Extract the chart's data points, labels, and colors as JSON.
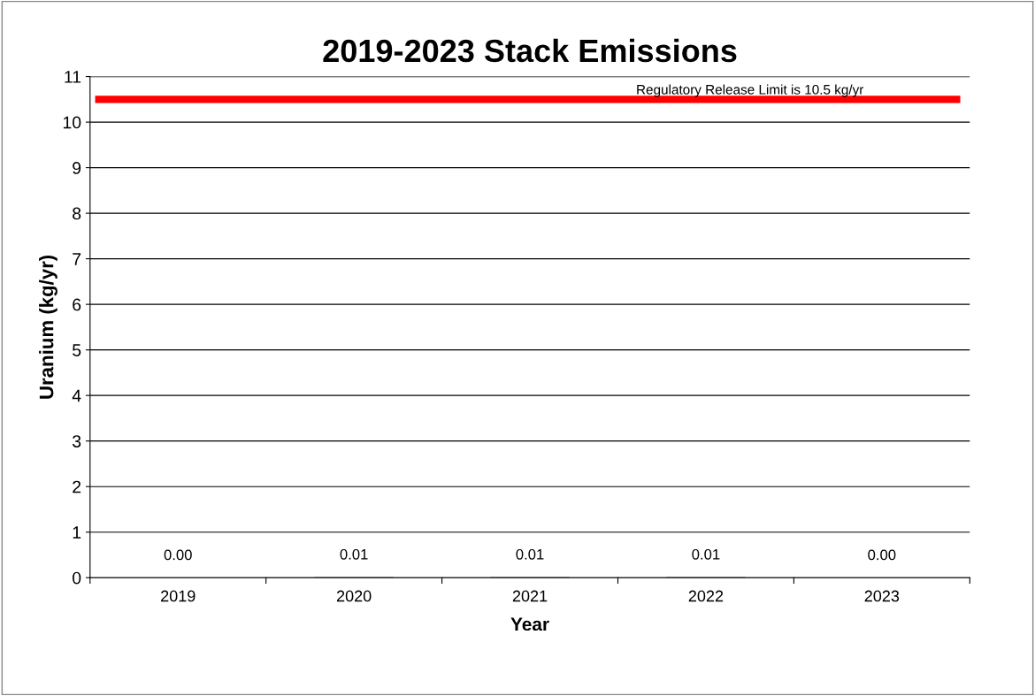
{
  "chart_data": {
    "type": "bar",
    "title": "2019-2023 Stack Emissions",
    "xlabel": "Year",
    "ylabel": "Uranium (kg/yr)",
    "categories": [
      "2019",
      "2020",
      "2021",
      "2022",
      "2023"
    ],
    "values": [
      0,
      0.01,
      0.01,
      0.01,
      0
    ],
    "value_labels": [
      "0.00",
      "0.01",
      "0.01",
      "0.01",
      "0.00"
    ],
    "color": "#000000",
    "ylim": [
      0,
      11
    ],
    "yticks": [
      0,
      1,
      2,
      3,
      4,
      5,
      6,
      7,
      8,
      9,
      10,
      11
    ],
    "grid": "y",
    "ref_lines": [
      {
        "axis": "y",
        "value": 10.5,
        "label": "Regulatory Release Limit is 10.5 kg/yr",
        "color": "#ff0000",
        "line_style": "solid"
      }
    ]
  }
}
